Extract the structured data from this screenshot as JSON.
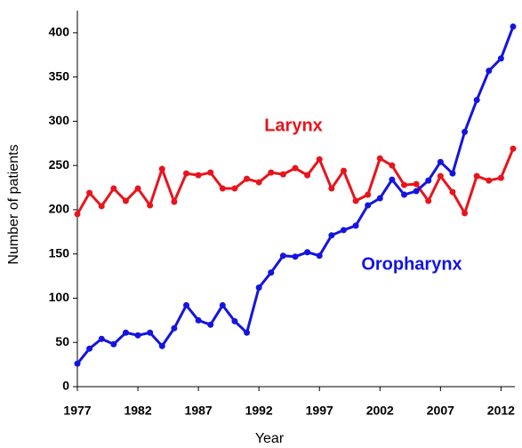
{
  "chart_data": {
    "type": "line",
    "x": [
      1977,
      1978,
      1979,
      1980,
      1981,
      1982,
      1983,
      1984,
      1985,
      1986,
      1987,
      1988,
      1989,
      1990,
      1991,
      1992,
      1993,
      1994,
      1995,
      1996,
      1997,
      1998,
      1999,
      2000,
      2001,
      2002,
      2003,
      2004,
      2005,
      2006,
      2007,
      2008,
      2009,
      2010,
      2011,
      2012,
      2013
    ],
    "series": [
      {
        "name": "Larynx",
        "color": "#e8141c",
        "values": [
          195,
          219,
          204,
          224,
          210,
          224,
          205,
          246,
          209,
          241,
          239,
          242,
          224,
          224,
          235,
          231,
          242,
          240,
          247,
          239,
          257,
          224,
          244,
          210,
          217,
          258,
          250,
          228,
          229,
          210,
          238,
          220,
          196,
          238,
          233,
          236,
          269
        ]
      },
      {
        "name": "Oropharynx",
        "color": "#1414e0",
        "values": [
          26,
          43,
          54,
          48,
          61,
          58,
          61,
          46,
          66,
          92,
          75,
          70,
          92,
          74,
          61,
          112,
          129,
          148,
          147,
          152,
          148,
          171,
          177,
          182,
          205,
          213,
          234,
          217,
          221,
          233,
          254,
          241,
          288,
          324,
          357,
          371,
          407
        ]
      }
    ],
    "xlabel": "Year",
    "ylabel": "Number of patients",
    "xlim": [
      1977,
      2013
    ],
    "ylim": [
      0,
      425
    ],
    "xticks": [
      1977,
      1982,
      1987,
      1992,
      1997,
      2002,
      2007,
      2012
    ],
    "yticks": [
      0,
      50,
      100,
      150,
      200,
      250,
      300,
      350,
      400
    ]
  }
}
